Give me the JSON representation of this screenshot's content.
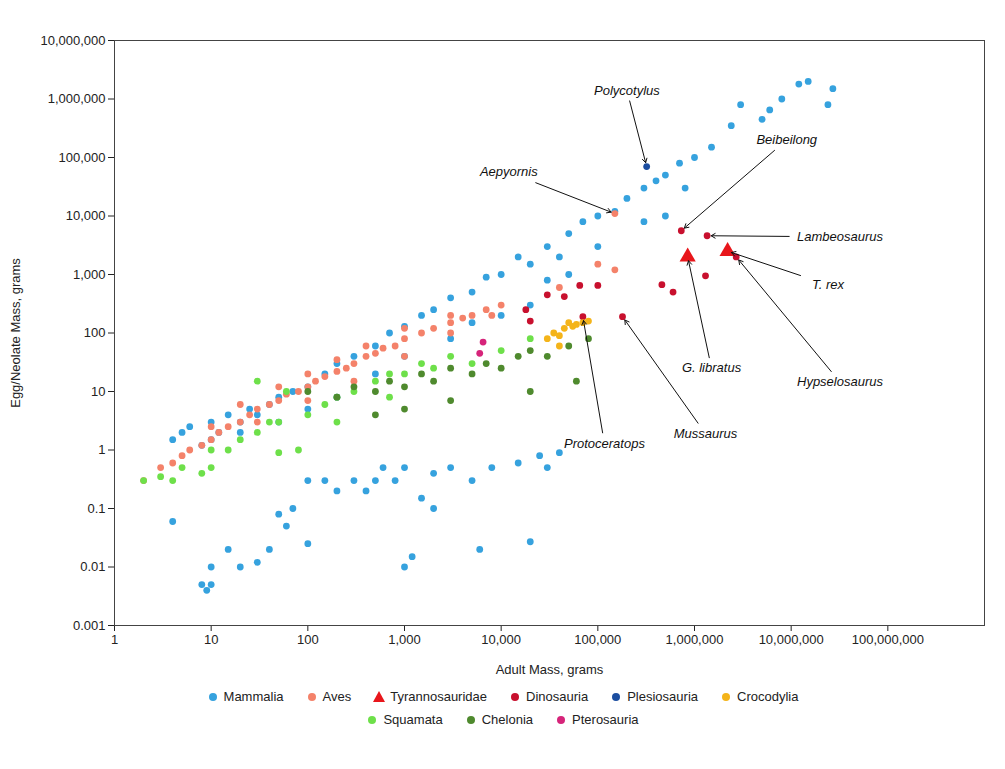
{
  "chart_data": {
    "type": "scatter",
    "log": true,
    "grid": false,
    "legend": "bottom",
    "x_label": "Adult Mass, grams",
    "y_label": "Egg/Neolate Mass, grams",
    "xlim": [
      1,
      1000000000
    ],
    "ylim": [
      0.001,
      10000000
    ],
    "xticks": [
      1,
      10,
      100,
      {
        "value": 1000,
        "label": "1,000"
      },
      {
        "value": 10000,
        "label": "10,000"
      },
      {
        "value": 100000,
        "label": "100,000"
      },
      {
        "value": 1000000,
        "label": "1,000,000"
      },
      {
        "value": 10000000,
        "label": "10,000,000"
      },
      {
        "value": 100000000,
        "label": "100,000,000"
      }
    ],
    "yticks": [
      0.001,
      0.01,
      0.1,
      1,
      10,
      100,
      {
        "value": 1000,
        "label": "1,000"
      },
      {
        "value": 10000,
        "label": "10,000"
      },
      {
        "value": 100000,
        "label": "100,000"
      },
      {
        "value": 1000000,
        "label": "1,000,000"
      },
      {
        "value": 10000000,
        "label": "10,000,000"
      }
    ],
    "series": [
      {
        "name": "Mammalia",
        "color": "#36a2de",
        "marker": "circle",
        "x": [
          4,
          5,
          6,
          8,
          10,
          12,
          15,
          20,
          25,
          30,
          40,
          50,
          70,
          100,
          150,
          200,
          300,
          500,
          700,
          1000,
          1500,
          2000,
          3000,
          5000,
          7000,
          10000,
          15000,
          20000,
          30000,
          40000,
          50000,
          70000,
          100000,
          150000,
          200000,
          300000,
          400000,
          500000,
          700000,
          1000000,
          800000,
          500000,
          300000,
          100000,
          50000,
          30000,
          20000,
          10000,
          5000,
          3000,
          1000,
          500,
          200,
          100,
          50,
          20,
          10,
          1500000,
          2400000,
          3000000,
          5000000,
          6000000,
          8000000,
          12000000,
          15000000,
          27000000,
          24000000,
          4,
          8,
          9,
          10,
          10,
          15,
          20,
          30,
          40,
          50,
          60,
          70,
          100,
          100,
          150,
          200,
          300,
          400,
          500,
          600,
          800,
          1000,
          1000,
          1200,
          1500,
          2000,
          2000,
          3000,
          5000,
          6000,
          8000,
          15000,
          20000,
          25000,
          30000,
          40000
        ],
        "y": [
          1.5,
          2,
          2.5,
          1.2,
          3,
          2,
          4,
          3,
          5,
          4,
          6,
          8,
          10,
          12,
          20,
          30,
          40,
          60,
          100,
          130,
          200,
          250,
          400,
          500,
          900,
          1000,
          2000,
          1500,
          3000,
          2000,
          5000,
          8000,
          10000,
          12000,
          20000,
          30000,
          40000,
          50000,
          80000,
          100000,
          30000,
          10000,
          8000,
          3000,
          1000,
          800,
          300,
          200,
          150,
          80,
          40,
          20,
          8,
          5,
          3,
          2,
          1.5,
          150000,
          350000,
          800000,
          450000,
          650000,
          1000000,
          1800000,
          2000000,
          1500000,
          800000,
          0.06,
          0.005,
          0.004,
          0.005,
          0.01,
          0.02,
          0.01,
          0.012,
          0.02,
          0.08,
          0.05,
          0.1,
          0.025,
          0.3,
          0.3,
          0.2,
          0.3,
          0.2,
          0.3,
          0.5,
          0.3,
          0.01,
          0.5,
          0.015,
          0.15,
          0.1,
          0.4,
          0.5,
          0.3,
          0.02,
          0.5,
          0.6,
          0.027,
          0.8,
          0.5,
          0.9
        ]
      },
      {
        "name": "Aves",
        "color": "#f4826a",
        "marker": "circle",
        "x": [
          2,
          3,
          4,
          5,
          6,
          8,
          10,
          12,
          15,
          20,
          25,
          30,
          40,
          50,
          60,
          80,
          100,
          120,
          150,
          200,
          250,
          300,
          400,
          500,
          600,
          800,
          1000,
          1500,
          2000,
          3000,
          4000,
          5000,
          7000,
          10000,
          20,
          50,
          100,
          200,
          400,
          1000,
          3000,
          10,
          30,
          100,
          300,
          1000,
          3000,
          8000,
          40000,
          100000,
          150000,
          150000
        ],
        "y": [
          0.3,
          0.5,
          0.6,
          0.8,
          1,
          1.2,
          1.5,
          2,
          2.5,
          3,
          4,
          5,
          6,
          7,
          9,
          10,
          12,
          15,
          18,
          22,
          25,
          30,
          40,
          45,
          55,
          60,
          80,
          100,
          120,
          150,
          180,
          200,
          250,
          300,
          6,
          12,
          20,
          35,
          60,
          120,
          200,
          2.5,
          3,
          7,
          15,
          40,
          100,
          200,
          600,
          1500,
          1200,
          11000
        ]
      },
      {
        "name": "Tyrannosauridae",
        "color": "#e8161b",
        "marker": "triangle",
        "x": [
          850000,
          2200000
        ],
        "y": [
          2000,
          2500
        ]
      },
      {
        "name": "Dinosauria",
        "color": "#c8102e",
        "marker": "circle",
        "x": [
          730000,
          1350000,
          2700000,
          1300000,
          460000,
          600000,
          70000,
          180000,
          18000,
          30000,
          45000,
          65000,
          100000,
          20000
        ],
        "y": [
          5600,
          4600,
          2000,
          950,
          670,
          500,
          190,
          190,
          250,
          450,
          420,
          650,
          650,
          160
        ]
      },
      {
        "name": "Plesiosauria",
        "color": "#1c4ea0",
        "marker": "circle",
        "x": [
          320000
        ],
        "y": [
          70000
        ]
      },
      {
        "name": "Crocodylia",
        "color": "#f4b41a",
        "marker": "circle",
        "x": [
          30000,
          35000,
          40000,
          45000,
          50000,
          55000,
          60000,
          70000,
          80000,
          40000
        ],
        "y": [
          80,
          100,
          90,
          120,
          150,
          130,
          140,
          150,
          160,
          60
        ]
      },
      {
        "name": "Squamata",
        "color": "#6ee04a",
        "marker": "circle",
        "x": [
          2,
          3,
          4,
          5,
          8,
          10,
          10,
          15,
          20,
          30,
          40,
          50,
          60,
          80,
          100,
          150,
          200,
          300,
          500,
          700,
          1000,
          1500,
          2000,
          3000,
          5000,
          10000,
          20000,
          50,
          30,
          200,
          700
        ],
        "y": [
          0.3,
          0.35,
          0.3,
          0.5,
          0.4,
          0.5,
          1,
          1,
          1.5,
          2,
          3,
          3,
          10,
          1,
          4,
          6,
          8,
          10,
          15,
          20,
          20,
          30,
          25,
          40,
          30,
          50,
          80,
          0.9,
          15,
          3,
          8
        ]
      },
      {
        "name": "Chelonia",
        "color": "#4f8a2e",
        "marker": "circle",
        "x": [
          100,
          200,
          300,
          500,
          700,
          1000,
          1500,
          2000,
          3000,
          5000,
          7000,
          10000,
          15000,
          20000,
          30000,
          50000,
          80000,
          3000,
          1000,
          500,
          20000,
          60000
        ],
        "y": [
          10,
          8,
          12,
          10,
          15,
          12,
          20,
          15,
          25,
          20,
          30,
          25,
          40,
          50,
          40,
          60,
          80,
          7,
          5,
          4,
          10,
          15
        ]
      },
      {
        "name": "Pterosauria",
        "color": "#d6247a",
        "marker": "circle",
        "x": [
          6500,
          6000
        ],
        "y": [
          70,
          45
        ]
      }
    ],
    "annotations": [
      {
        "text": "Polycotylus",
        "x": 320000,
        "y": 70000,
        "text_x": 200000,
        "text_y": 1400000
      },
      {
        "text": "Aepyornis",
        "x": 150000,
        "y": 11000,
        "text_x": 12000,
        "text_y": 56000
      },
      {
        "text": "Beibeilong",
        "x": 730000,
        "y": 5600,
        "text_x": 9000000,
        "text_y": 200000
      },
      {
        "text": "Lambeosaurus",
        "x": 1350000,
        "y": 4600,
        "text_x": 32000000,
        "text_y": 4400
      },
      {
        "text": "T. rex",
        "x": 2200000,
        "y": 2500,
        "text_x": 24000000,
        "text_y": 670
      },
      {
        "text": "Hypselosaurus",
        "x": 2700000,
        "y": 2000,
        "text_x": 32000000,
        "text_y": 14.5
      },
      {
        "text": "G. libratus",
        "x": 850000,
        "y": 2000,
        "text_x": 1500000,
        "text_y": 25
      },
      {
        "text": "Mussaurus",
        "x": 180000,
        "y": 190,
        "text_x": 1300000,
        "text_y": 1.9
      },
      {
        "text": "Protoceratops",
        "x": 70000,
        "y": 190,
        "text_x": 117000,
        "text_y": 1.3
      }
    ]
  }
}
